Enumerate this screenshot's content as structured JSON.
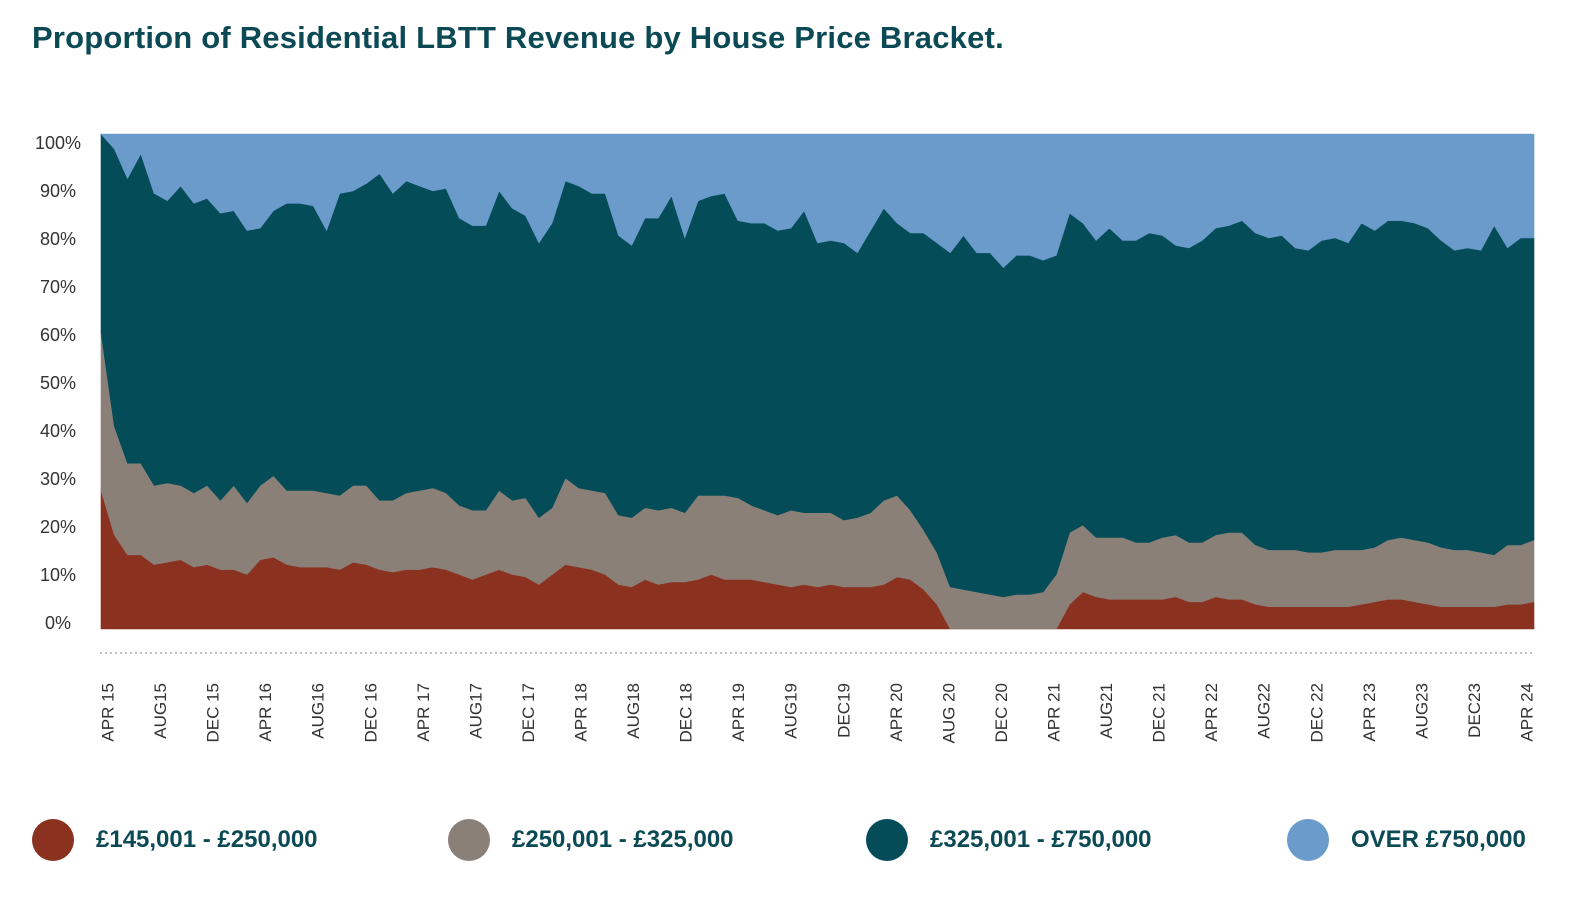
{
  "title": "Proportion of Residential LBTT Revenue by House Price Bracket.",
  "chart_data": {
    "type": "area",
    "stacked": true,
    "normalized": true,
    "ylim": [
      0,
      100
    ],
    "yticks": [
      "0%",
      "10%",
      "20%",
      "30%",
      "40%",
      "50%",
      "60%",
      "70%",
      "80%",
      "90%",
      "100%"
    ],
    "xtick_labels": [
      "APR 15",
      "AUG15",
      "DEC 15",
      "APR 16",
      "AUG16",
      "DEC 16",
      "APR 17",
      "AUG17",
      "DEC 17",
      "APR 18",
      "AUG18",
      "DEC 18",
      "APR 19",
      "AUG19",
      "DEC19",
      "APR 20",
      "AUG 20",
      "DEC 20",
      "APR 21",
      "AUG21",
      "DEC 21",
      "APR 22",
      "AUG22",
      "DEC 22",
      "APR 23",
      "AUG23",
      "DEC23",
      "APR 24"
    ],
    "x": [
      "2015-04",
      "2015-05",
      "2015-06",
      "2015-07",
      "2015-08",
      "2015-09",
      "2015-10",
      "2015-11",
      "2015-12",
      "2016-01",
      "2016-02",
      "2016-03",
      "2016-04",
      "2016-05",
      "2016-06",
      "2016-07",
      "2016-08",
      "2016-09",
      "2016-10",
      "2016-11",
      "2016-12",
      "2017-01",
      "2017-02",
      "2017-03",
      "2017-04",
      "2017-05",
      "2017-06",
      "2017-07",
      "2017-08",
      "2017-09",
      "2017-10",
      "2017-11",
      "2017-12",
      "2018-01",
      "2018-02",
      "2018-03",
      "2018-04",
      "2018-05",
      "2018-06",
      "2018-07",
      "2018-08",
      "2018-09",
      "2018-10",
      "2018-11",
      "2018-12",
      "2019-01",
      "2019-02",
      "2019-03",
      "2019-04",
      "2019-05",
      "2019-06",
      "2019-07",
      "2019-08",
      "2019-09",
      "2019-10",
      "2019-11",
      "2019-12",
      "2020-01",
      "2020-02",
      "2020-03",
      "2020-04",
      "2020-05",
      "2020-06",
      "2020-07",
      "2020-08",
      "2020-09",
      "2020-10",
      "2020-11",
      "2020-12",
      "2021-01",
      "2021-02",
      "2021-03",
      "2021-04",
      "2021-05",
      "2021-06",
      "2021-07",
      "2021-08",
      "2021-09",
      "2021-10",
      "2021-11",
      "2021-12",
      "2022-01",
      "2022-02",
      "2022-03",
      "2022-04",
      "2022-05",
      "2022-06",
      "2022-07",
      "2022-08",
      "2022-09",
      "2022-10",
      "2022-11",
      "2022-12",
      "2023-01",
      "2023-02",
      "2023-03",
      "2023-04",
      "2023-05",
      "2023-06",
      "2023-07",
      "2023-08",
      "2023-09",
      "2023-10",
      "2023-11",
      "2023-12",
      "2024-01",
      "2024-02",
      "2024-03",
      "2024-04"
    ],
    "series": [
      {
        "name": "£145,001 - £250,000",
        "color": "#8b3120",
        "values": [
          28,
          19,
          15,
          15,
          13,
          13.5,
          14,
          12.5,
          13,
          12,
          12,
          11,
          14,
          14.5,
          13,
          12.5,
          12.5,
          12.5,
          12,
          13.5,
          13,
          12,
          11.5,
          12,
          12,
          12.5,
          12,
          11,
          10,
          11,
          12,
          11,
          10.5,
          9,
          11,
          13,
          12.5,
          12,
          11,
          9,
          8.5,
          10,
          9,
          9.5,
          9.5,
          10,
          11,
          10,
          10,
          10,
          9.5,
          9,
          8.5,
          9,
          8.5,
          9,
          8.5,
          8.5,
          8.5,
          9,
          10.5,
          10,
          8,
          5,
          0,
          0,
          0,
          0,
          0,
          0,
          0,
          0,
          0,
          5,
          7.5,
          6.5,
          6,
          6,
          6,
          6,
          6,
          6.5,
          5.5,
          5.5,
          6.5,
          6,
          6,
          5,
          4.5,
          4.5,
          4.5,
          4.5,
          4.5,
          4.5,
          4.5,
          5,
          5.5,
          6,
          6,
          5.5,
          5,
          4.5,
          4.5,
          4.5,
          4.5,
          4.5,
          5,
          5,
          5.5
        ]
      },
      {
        "name": "£250,001 - £325,000",
        "color": "#8a8078",
        "values": [
          32,
          22,
          18.5,
          18.5,
          16,
          16,
          15,
          15,
          16,
          14,
          17,
          14.5,
          15,
          16.5,
          15,
          15.5,
          15.5,
          15,
          15,
          15.5,
          16,
          14,
          14.5,
          15.5,
          16,
          16,
          15.5,
          14,
          14,
          13,
          16,
          15,
          16,
          13.5,
          13.5,
          17.5,
          16,
          16,
          16.5,
          14,
          14,
          14.5,
          15,
          15,
          14,
          17,
          16,
          17,
          16.5,
          15,
          14.5,
          14,
          15.5,
          14.5,
          15,
          14.5,
          13.5,
          14,
          15,
          17,
          16.5,
          14,
          12,
          10.5,
          8.5,
          8,
          7.5,
          7,
          6.5,
          7,
          7,
          7.5,
          11,
          14.5,
          13.5,
          12,
          12.5,
          12.5,
          11.5,
          11.5,
          12.5,
          12.5,
          12,
          12,
          12.5,
          13.5,
          13.5,
          12,
          11.5,
          11.5,
          11.5,
          11,
          11,
          11.5,
          11.5,
          11,
          11,
          12,
          12.5,
          12.5,
          12.5,
          12,
          11.5,
          11.5,
          11,
          10.5,
          12,
          12,
          12.5
        ]
      },
      {
        "name": "£325,001 - £750,000",
        "color": "#034c58",
        "values": [
          40,
          56,
          57.5,
          62.5,
          59,
          57,
          60.5,
          58.5,
          58,
          58,
          55.5,
          55,
          52,
          53.5,
          58,
          58,
          57.5,
          53,
          61,
          59.5,
          61,
          66,
          62,
          63,
          61.5,
          60,
          61.5,
          58,
          57.5,
          57.5,
          60.5,
          59,
          57,
          55.5,
          57.5,
          60,
          61,
          60,
          60.5,
          56.5,
          55,
          58.5,
          59,
          63,
          55.5,
          59.5,
          60.5,
          61,
          56,
          57,
          58,
          57.5,
          57,
          61,
          54.5,
          55,
          56,
          53.5,
          57,
          59,
          55,
          56,
          60,
          62.5,
          67.5,
          71.5,
          68.5,
          69,
          66.5,
          68.5,
          68.5,
          67,
          64.5,
          64.5,
          61,
          60,
          62.5,
          60,
          61,
          62.5,
          61,
          58.5,
          59.5,
          61,
          62,
          62,
          63,
          63,
          63,
          63.5,
          61,
          61,
          63,
          63,
          62,
          66,
          64,
          64.5,
          64,
          64,
          63.5,
          62,
          60.5,
          61,
          61,
          66.5,
          60,
          62,
          61
        ]
      },
      {
        "name": "OVER £750,000",
        "color": "#6a9bcb",
        "values": [
          0,
          3,
          9,
          4,
          12,
          13.5,
          10.5,
          14,
          13,
          16,
          15.5,
          19.5,
          19,
          15.5,
          14,
          14,
          14.5,
          19.5,
          12,
          11.5,
          10,
          8,
          12,
          9.5,
          10.5,
          11.5,
          11,
          17,
          18.5,
          18.5,
          11.5,
          15,
          16.5,
          22,
          18,
          9.5,
          10.5,
          12,
          12,
          20.5,
          22.5,
          17,
          17,
          12.5,
          21,
          13.5,
          12.5,
          12,
          17.5,
          18,
          18,
          19.5,
          19,
          15.5,
          22,
          21.5,
          22,
          24,
          19.5,
          15,
          18,
          20,
          20,
          22,
          24,
          20.5,
          24,
          24,
          27,
          24.5,
          24.5,
          25.5,
          24.5,
          16,
          18,
          21.5,
          19,
          21.5,
          21.5,
          20,
          20.5,
          22.5,
          23,
          21.5,
          19,
          18.5,
          17.5,
          20,
          21,
          20.5,
          23,
          23.5,
          21.5,
          21,
          22,
          18,
          19.5,
          17.5,
          17.5,
          18,
          19,
          21.5,
          23.5,
          23,
          23.5,
          18.5,
          23,
          21,
          21
        ]
      }
    ]
  }
}
